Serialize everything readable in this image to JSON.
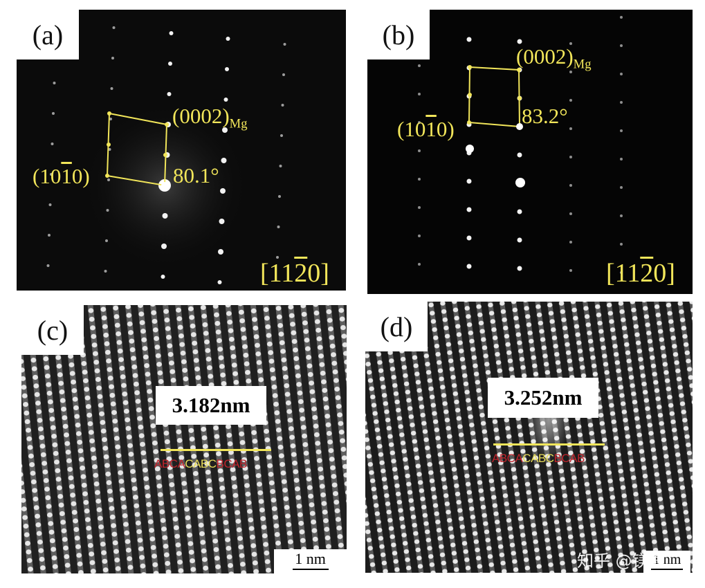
{
  "panels": {
    "a": {
      "label": "(a)",
      "plane_top": "(0002)",
      "plane_top_sub": "Mg",
      "plane_left_pre": "(10",
      "plane_left_bar": "1",
      "plane_left_post": "0)",
      "angle": "80.1°",
      "zone_pre": "[11",
      "zone_bar": "2",
      "zone_post": "0]"
    },
    "b": {
      "label": "(b)",
      "plane_top": "(0002)",
      "plane_top_sub": "Mg",
      "plane_left_pre": "(10",
      "plane_left_bar": "1",
      "plane_left_post": "0)",
      "angle": "83.2°",
      "zone_pre": "[11",
      "zone_bar": "2",
      "zone_post": "0]"
    },
    "c": {
      "label": "(c)",
      "measure": "3.182nm",
      "stack_red_1": "ABCA",
      "stack_yellow": "CABC",
      "stack_red_2": "BCAB",
      "scale": "1 nm"
    },
    "d": {
      "label": "(d)",
      "measure": "3.252nm",
      "stack_red_1": "ABCA",
      "stack_yellow": "CABC",
      "stack_red_2": "BCAB",
      "scale": "1 nm"
    }
  },
  "watermark": "知乎 @镁途",
  "colors": {
    "annotation": "#f2e65a",
    "stack_red": "#c0242c",
    "stack_yellow": "#e8dc5a"
  }
}
